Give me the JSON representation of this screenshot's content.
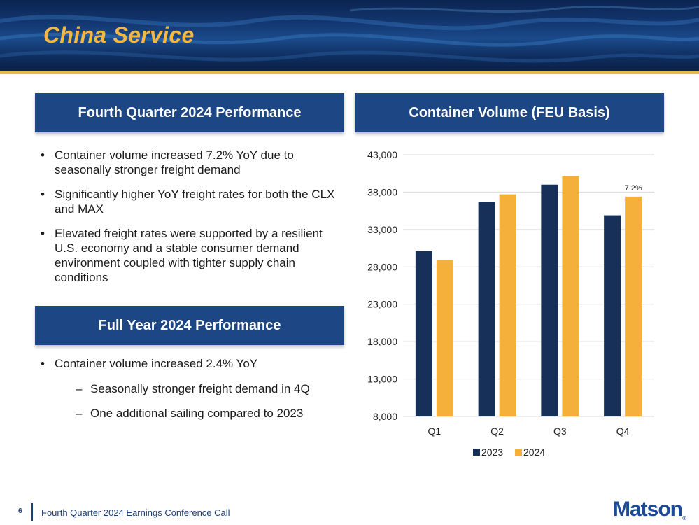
{
  "slide": {
    "title": "China Service"
  },
  "left_panel": {
    "q4_header": "Fourth Quarter 2024 Performance",
    "q4_bullets": [
      "Container volume increased 7.2% YoY due to seasonally stronger freight demand",
      "Significantly higher YoY freight rates for both the CLX and MAX",
      "Elevated freight rates were supported by a resilient U.S. economy and a stable consumer demand environment coupled with tighter supply chain conditions"
    ],
    "fy_header": "Full Year 2024 Performance",
    "fy_bullet": "Container volume increased 2.4% YoY",
    "fy_sub_bullets": [
      "Seasonally stronger freight demand in 4Q",
      "One additional sailing compared to 2023"
    ]
  },
  "right_panel": {
    "header": "Container Volume (FEU Basis)"
  },
  "chart_data": {
    "type": "bar",
    "title": "Container Volume (FEU Basis)",
    "categories": [
      "Q1",
      "Q2",
      "Q3",
      "Q4"
    ],
    "series": [
      {
        "name": "2023",
        "values": [
          30100,
          36700,
          39000,
          34900
        ],
        "color": "#16305a"
      },
      {
        "name": "2024",
        "values": [
          28900,
          37700,
          40100,
          37400
        ],
        "color": "#f5b03c"
      }
    ],
    "yticks": [
      "43,000",
      "38,000",
      "33,000",
      "28,000",
      "23,000",
      "18,000",
      "13,000",
      "8,000"
    ],
    "ylim": [
      8000,
      43000
    ],
    "grid": true,
    "legend": "bottom",
    "annotations": [
      {
        "category": "Q4",
        "series": "2024",
        "text": "7.2%"
      }
    ]
  },
  "footer": {
    "page_number": "6",
    "text": "Fourth Quarter 2024 Earnings Conference Call",
    "logo": "Matson",
    "logo_mark": "®"
  },
  "colors": {
    "accent": "#f3b843",
    "header_blue": "#1c4684"
  }
}
